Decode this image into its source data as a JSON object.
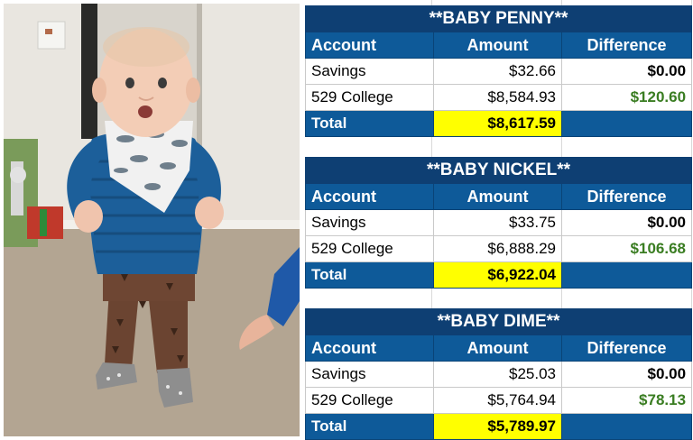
{
  "tables": [
    {
      "title": "**BABY PENNY**",
      "headers": {
        "account": "Account",
        "amount": "Amount",
        "difference": "Difference"
      },
      "rows": [
        {
          "account": "Savings",
          "amount": "$32.66",
          "difference": "$0.00"
        },
        {
          "account": "529 College",
          "amount": "$8,584.93",
          "difference": "$120.60"
        }
      ],
      "total": {
        "label": "Total",
        "amount": "$8,617.59"
      }
    },
    {
      "title": "**BABY NICKEL**",
      "headers": {
        "account": "Account",
        "amount": "Amount",
        "difference": "Difference"
      },
      "rows": [
        {
          "account": "Savings",
          "amount": "$33.75",
          "difference": "$0.00"
        },
        {
          "account": "529 College",
          "amount": "$6,888.29",
          "difference": "$106.68"
        }
      ],
      "total": {
        "label": "Total",
        "amount": "$6,922.04"
      }
    },
    {
      "title": "**BABY DIME**",
      "headers": {
        "account": "Account",
        "amount": "Amount",
        "difference": "Difference"
      },
      "rows": [
        {
          "account": "Savings",
          "amount": "$25.03",
          "difference": "$0.00"
        },
        {
          "account": "529 College",
          "amount": "$5,764.94",
          "difference": "$78.13"
        }
      ],
      "total": {
        "label": "Total",
        "amount": "$5,789.97"
      }
    }
  ],
  "colors": {
    "title_bg": "#0e3f73",
    "header_bg": "#0e5a99",
    "total_highlight": "#ffff00",
    "positive_difference": "#3a7d22"
  }
}
